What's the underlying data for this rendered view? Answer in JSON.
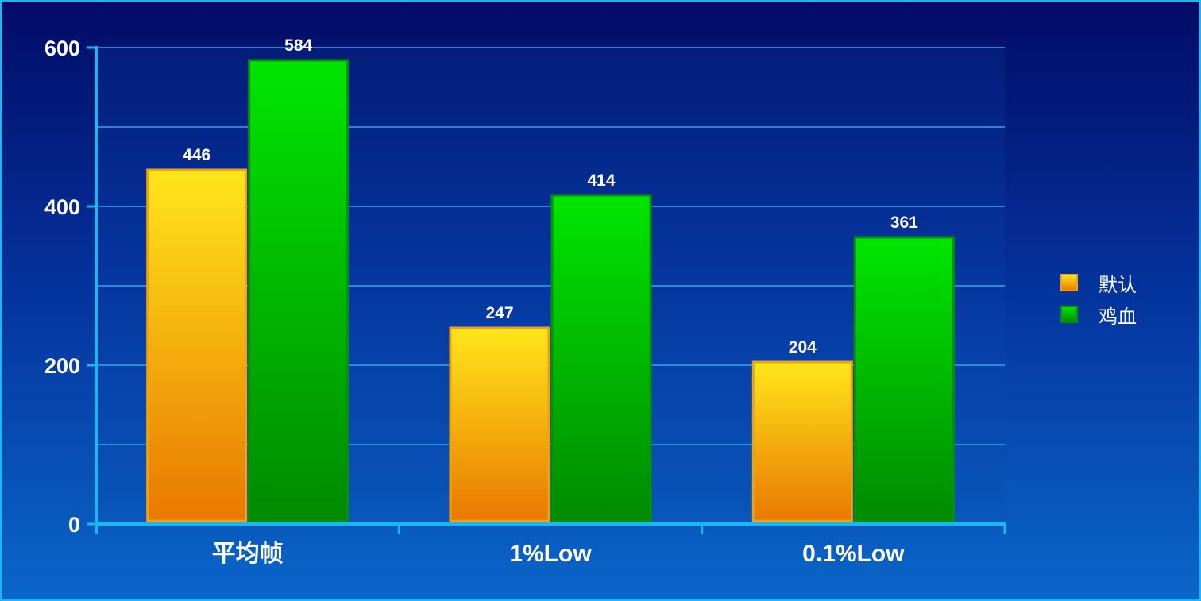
{
  "chart_data": {
    "type": "bar",
    "categories": [
      "平均帧",
      "1%Low",
      "0.1%Low"
    ],
    "series": [
      {
        "name": "默认",
        "values": [
          446,
          247,
          204
        ],
        "color_top": "#ffe61a",
        "color_bottom": "#e87800",
        "border": "#f0a010"
      },
      {
        "name": "鸡血",
        "values": [
          584,
          414,
          361
        ],
        "color_top": "#00e600",
        "color_bottom": "#008a00",
        "border": "#0a8f0a"
      }
    ],
    "y_ticks": [
      "0",
      "200",
      "400",
      "600"
    ],
    "ylim": [
      0,
      600
    ],
    "grid": true,
    "legend_position": "right"
  }
}
